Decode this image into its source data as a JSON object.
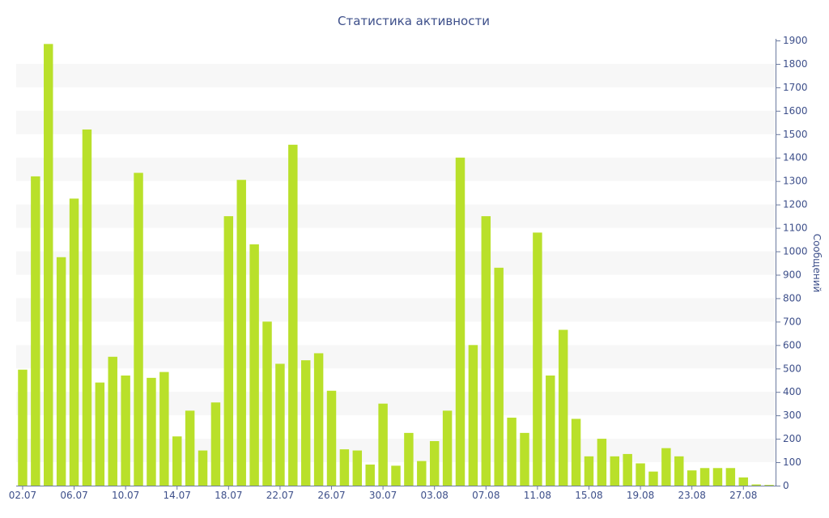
{
  "chart_data": {
    "type": "bar",
    "title": "Статистика активности",
    "ylabel": "Сообщений",
    "xlabel": "",
    "ylim": [
      0,
      1900
    ],
    "y_ticks": [
      0,
      100,
      200,
      300,
      400,
      500,
      600,
      700,
      800,
      900,
      1000,
      1100,
      1200,
      1300,
      1400,
      1500,
      1600,
      1700,
      1800,
      1900
    ],
    "y_axis_side": "right",
    "grid": "alternating horizontal bands",
    "bar_color": "#b9e02a",
    "band_color": "#f7f7f7",
    "text_color": "#3d4f8a",
    "x_tick_labels": [
      "02.07",
      "06.07",
      "10.07",
      "14.07",
      "18.07",
      "22.07",
      "26.07",
      "30.07",
      "03.08",
      "07.08",
      "11.08",
      "15.08",
      "19.08",
      "23.08",
      "27.08"
    ],
    "categories": [
      "02.07",
      "03.07",
      "04.07",
      "05.07",
      "06.07",
      "07.07",
      "08.07",
      "09.07",
      "10.07",
      "11.07",
      "12.07",
      "13.07",
      "14.07",
      "15.07",
      "16.07",
      "17.07",
      "18.07",
      "19.07",
      "20.07",
      "21.07",
      "22.07",
      "23.07",
      "24.07",
      "25.07",
      "26.07",
      "27.07",
      "28.07",
      "29.07",
      "30.07",
      "31.07",
      "01.08",
      "02.08",
      "03.08",
      "04.08",
      "05.08",
      "06.08",
      "07.08",
      "08.08",
      "09.08",
      "10.08",
      "11.08",
      "12.08",
      "13.08",
      "14.08",
      "15.08",
      "16.08",
      "17.08",
      "18.08",
      "19.08",
      "20.08",
      "21.08",
      "22.08",
      "23.08",
      "24.08",
      "25.08",
      "26.08",
      "27.08",
      "28.08",
      "29.08"
    ],
    "values": [
      495,
      1320,
      1885,
      975,
      1225,
      1520,
      440,
      550,
      470,
      1335,
      460,
      485,
      210,
      320,
      150,
      355,
      1150,
      1305,
      1030,
      700,
      520,
      1455,
      535,
      565,
      405,
      155,
      150,
      90,
      350,
      85,
      225,
      105,
      190,
      320,
      1400,
      600,
      1150,
      930,
      290,
      225,
      1080,
      470,
      665,
      285,
      125,
      200,
      125,
      135,
      95,
      60,
      160,
      125,
      65,
      75,
      75,
      75,
      35,
      5,
      3
    ]
  }
}
